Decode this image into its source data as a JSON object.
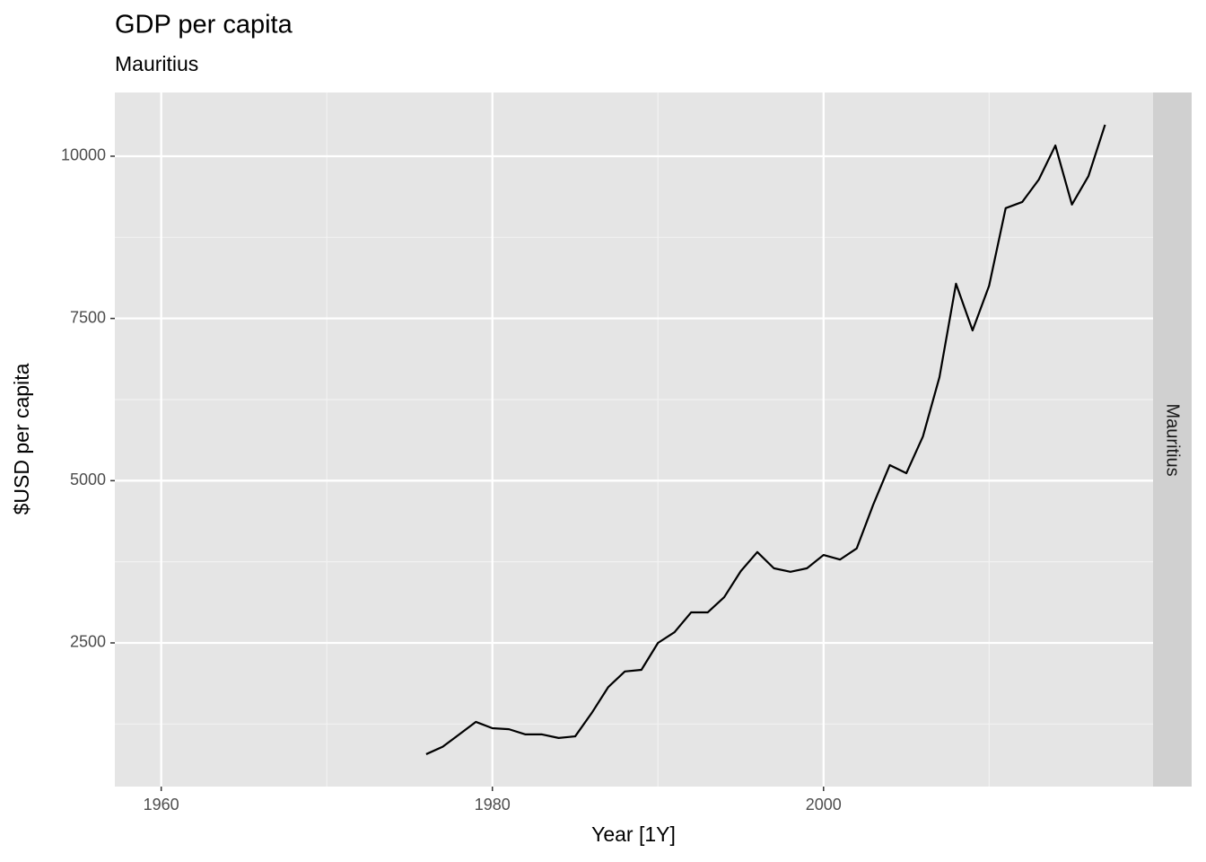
{
  "chart_data": {
    "type": "line",
    "title": "GDP per capita",
    "subtitle": "Mauritius",
    "x_label": "Year [1Y]",
    "y_label": "$USD per capita",
    "facet": "Mauritius",
    "x": [
      1976,
      1977,
      1978,
      1979,
      1980,
      1981,
      1982,
      1983,
      1984,
      1985,
      1986,
      1987,
      1988,
      1989,
      1990,
      1991,
      1992,
      1993,
      1994,
      1995,
      1996,
      1997,
      1998,
      1999,
      2000,
      2001,
      2002,
      2003,
      2004,
      2005,
      2006,
      2007,
      2008,
      2009,
      2010,
      2011,
      2012,
      2013,
      2014,
      2015,
      2016,
      2017
    ],
    "series": [
      {
        "color": "#000000",
        "values": [
          785,
          900,
          1090,
          1283,
          1185,
          1170,
          1090,
          1090,
          1035,
          1060,
          1420,
          1820,
          2060,
          2085,
          2500,
          2665,
          2970,
          2970,
          3205,
          3605,
          3900,
          3650,
          3595,
          3650,
          3855,
          3785,
          3955,
          4630,
          5240,
          5115,
          5680,
          6595,
          8035,
          7315,
          8005,
          9200,
          9295,
          9640,
          10165,
          9255,
          9695,
          10485
        ]
      }
    ],
    "xlim": [
      1957.2,
      2019.9
    ],
    "xticks": [
      1960,
      1980,
      2000
    ],
    "xminor": [
      1970,
      1990,
      2010
    ],
    "ylim": [
      286,
      10982
    ],
    "yticks": [
      2500,
      5000,
      7500,
      10000
    ],
    "yminor": [
      1250,
      3750,
      6250,
      8750
    ],
    "grid": true
  }
}
